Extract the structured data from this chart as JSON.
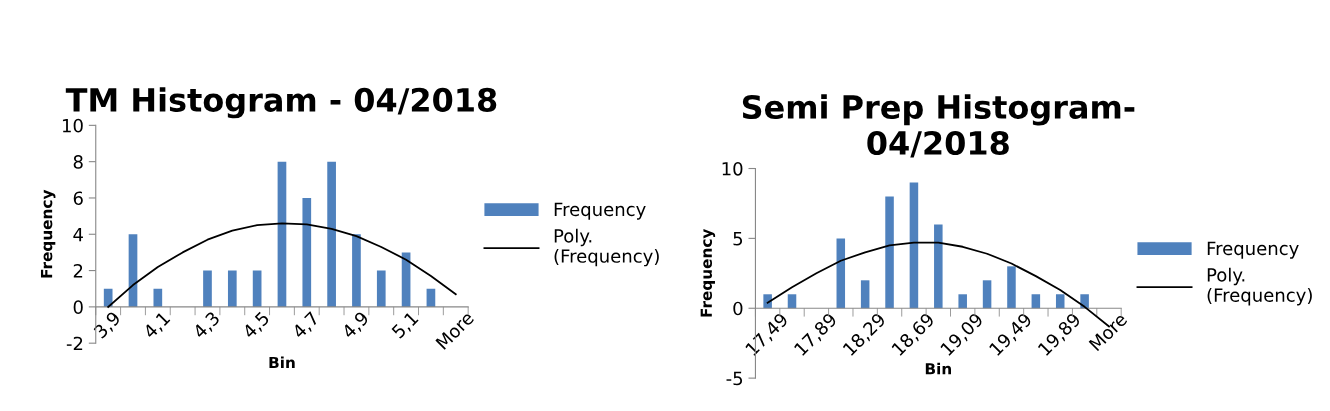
{
  "chart_data": [
    {
      "type": "bar",
      "title": "TM Histogram - 04/2018",
      "xlabel": "Bin",
      "ylabel": "Frequency",
      "categories": [
        "3,9",
        null,
        "4,1",
        null,
        "4,3",
        null,
        "4,5",
        null,
        "4,7",
        null,
        "4,9",
        null,
        "5,1",
        null,
        "More"
      ],
      "series": [
        {
          "name": "Frequency",
          "color": "#4f81bd",
          "values": [
            1,
            4,
            1,
            0,
            2,
            2,
            2,
            8,
            6,
            8,
            4,
            2,
            3,
            1,
            0
          ]
        },
        {
          "name": "Poly.\n(Frequency)",
          "type": "line",
          "color": "#000000",
          "values": [
            0,
            1.2,
            2.2,
            3.0,
            3.7,
            4.2,
            4.5,
            4.6,
            4.55,
            4.3,
            3.9,
            3.3,
            2.6,
            1.7,
            0.7
          ]
        }
      ],
      "ylim": [
        -2,
        10
      ],
      "yticks": [
        -2,
        0,
        2,
        4,
        6,
        8,
        10
      ],
      "grid": false,
      "legend": "right",
      "marker": "none"
    },
    {
      "type": "bar",
      "title": "Semi Prep Histogram-\n04/2018",
      "xlabel": "Bin",
      "ylabel": "Frequency",
      "categories": [
        "17,49",
        null,
        "17,89",
        null,
        "18,29",
        null,
        "18,69",
        null,
        "19,09",
        null,
        "19,49",
        null,
        "19,89",
        null,
        "More"
      ],
      "series": [
        {
          "name": "Frequency",
          "color": "#4f81bd",
          "values": [
            1,
            1,
            0,
            5,
            2,
            8,
            9,
            6,
            1,
            2,
            3,
            1,
            1,
            1,
            0
          ]
        },
        {
          "name": "Poly.\n(Frequency)",
          "type": "line",
          "color": "#000000",
          "values": [
            0.4,
            1.5,
            2.5,
            3.4,
            4.0,
            4.5,
            4.7,
            4.7,
            4.4,
            3.9,
            3.2,
            2.3,
            1.3,
            0.1,
            -1.3
          ]
        }
      ],
      "ylim": [
        -5,
        10
      ],
      "yticks": [
        -5,
        0,
        5,
        10
      ],
      "grid": false,
      "legend": "right",
      "marker": "none"
    }
  ]
}
